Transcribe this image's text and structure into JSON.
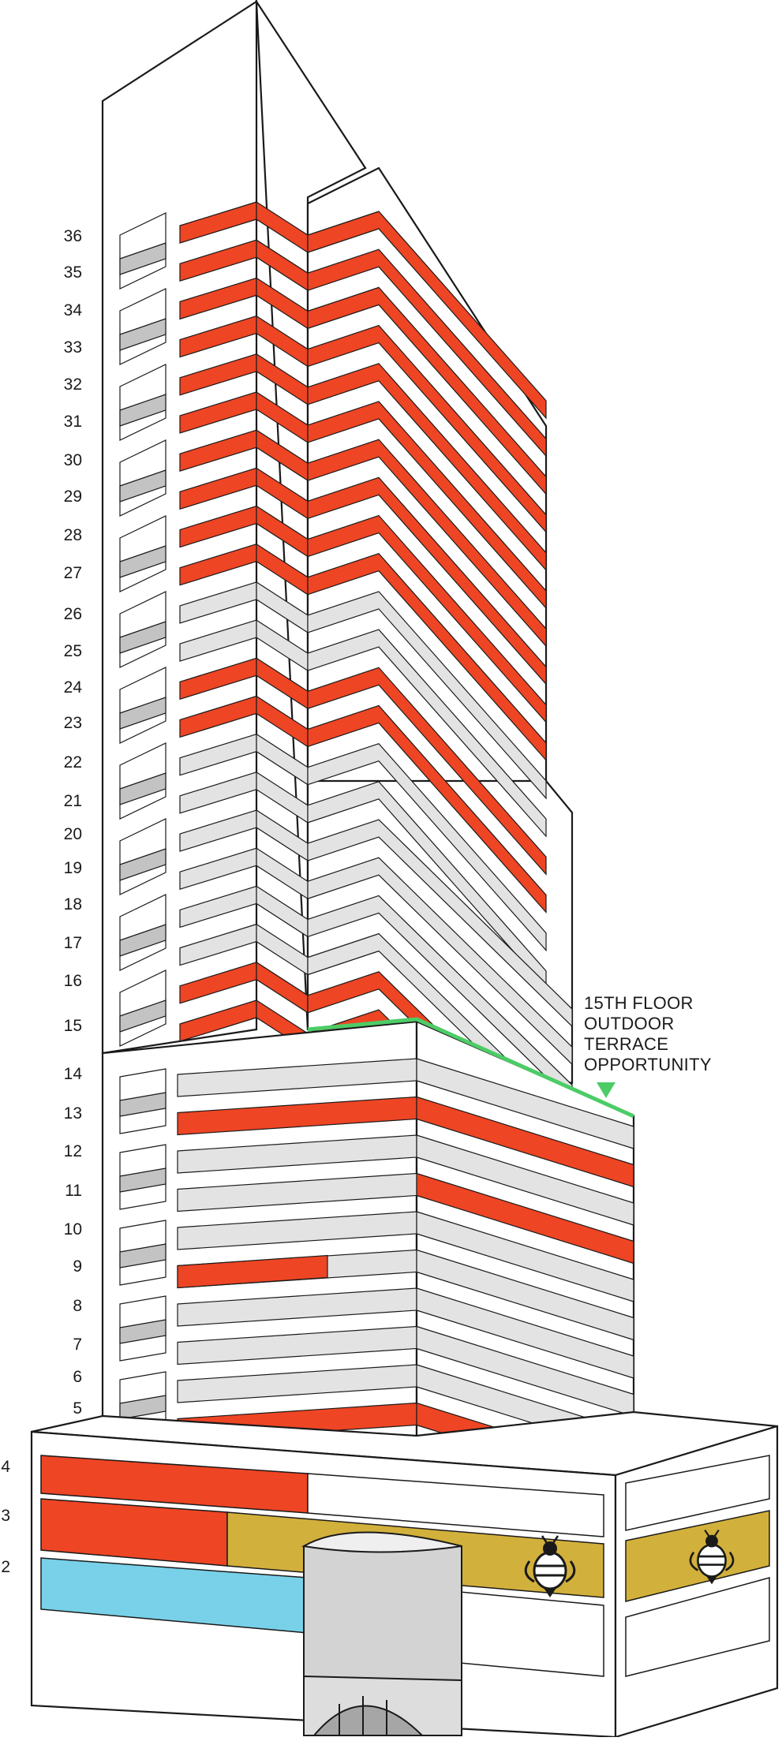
{
  "colors": {
    "occupied": "#ee4524",
    "vacant": "#e3e3e3",
    "tenant_gold": "#d2b03c",
    "tenant_blue": "#78d1e8",
    "terrace": "#4ccc66",
    "outline": "#1a1a1a",
    "window": "#c3c3c3"
  },
  "floor_labels": [
    "36",
    "35",
    "34",
    "33",
    "32",
    "31",
    "30",
    "29",
    "28",
    "27",
    "26",
    "25",
    "24",
    "23",
    "22",
    "21",
    "20",
    "19",
    "18",
    "17",
    "16",
    "15",
    "14",
    "13",
    "12",
    "11",
    "10",
    "9",
    "8",
    "7",
    "6",
    "5",
    "4",
    "3",
    "2"
  ],
  "callout": {
    "lines": [
      "15TH FLOOR",
      "OUTDOOR",
      "TERRACE",
      "OPPORTUNITY"
    ],
    "marker_icon": "down-triangle-icon"
  },
  "tenant_icon": "bee-icon",
  "entrance_icon": "arched-entrance-icon"
}
